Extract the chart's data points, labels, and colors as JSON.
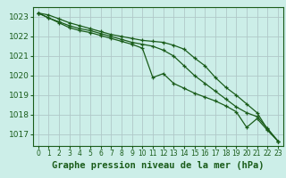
{
  "title": "Graphe pression niveau de la mer (hPa)",
  "bg_color": "#cceee8",
  "grid_color": "#b0c8c8",
  "line_color": "#1a5c1a",
  "ylim": [
    1016.4,
    1023.5
  ],
  "yticks": [
    1017,
    1018,
    1019,
    1020,
    1021,
    1022,
    1023
  ],
  "xlim": [
    -0.5,
    23.5
  ],
  "xticks": [
    0,
    1,
    2,
    3,
    4,
    5,
    6,
    7,
    8,
    9,
    10,
    11,
    12,
    13,
    14,
    15,
    16,
    17,
    18,
    19,
    20,
    21,
    22,
    23
  ],
  "series": [
    [
      1023.2,
      1023.1,
      1022.9,
      1022.7,
      1022.55,
      1022.4,
      1022.25,
      1022.1,
      1022.0,
      1021.9,
      1021.8,
      1021.75,
      1021.7,
      1021.55,
      1021.35,
      1020.9,
      1020.5,
      1019.9,
      1019.4,
      1019.0,
      1018.55,
      1018.1,
      1017.25,
      1016.65
    ],
    [
      1023.2,
      1022.95,
      1022.75,
      1022.55,
      1022.4,
      1022.3,
      1022.15,
      1022.0,
      1021.85,
      1021.7,
      1021.6,
      1021.5,
      1021.3,
      1021.0,
      1020.5,
      1020.0,
      1019.6,
      1019.2,
      1018.8,
      1018.4,
      1018.1,
      1017.9,
      1017.3,
      1016.65
    ],
    [
      1023.2,
      1022.95,
      1022.7,
      1022.45,
      1022.3,
      1022.2,
      1022.05,
      1021.9,
      1021.75,
      1021.6,
      1021.4,
      1019.9,
      1020.1,
      1019.6,
      1019.35,
      1019.1,
      1018.9,
      1018.7,
      1018.45,
      1018.15,
      1017.35,
      1017.8,
      1017.2,
      1016.65
    ]
  ],
  "xlabel_fontsize": 7.5,
  "ytick_fontsize": 6.5,
  "xtick_fontsize": 5.5
}
